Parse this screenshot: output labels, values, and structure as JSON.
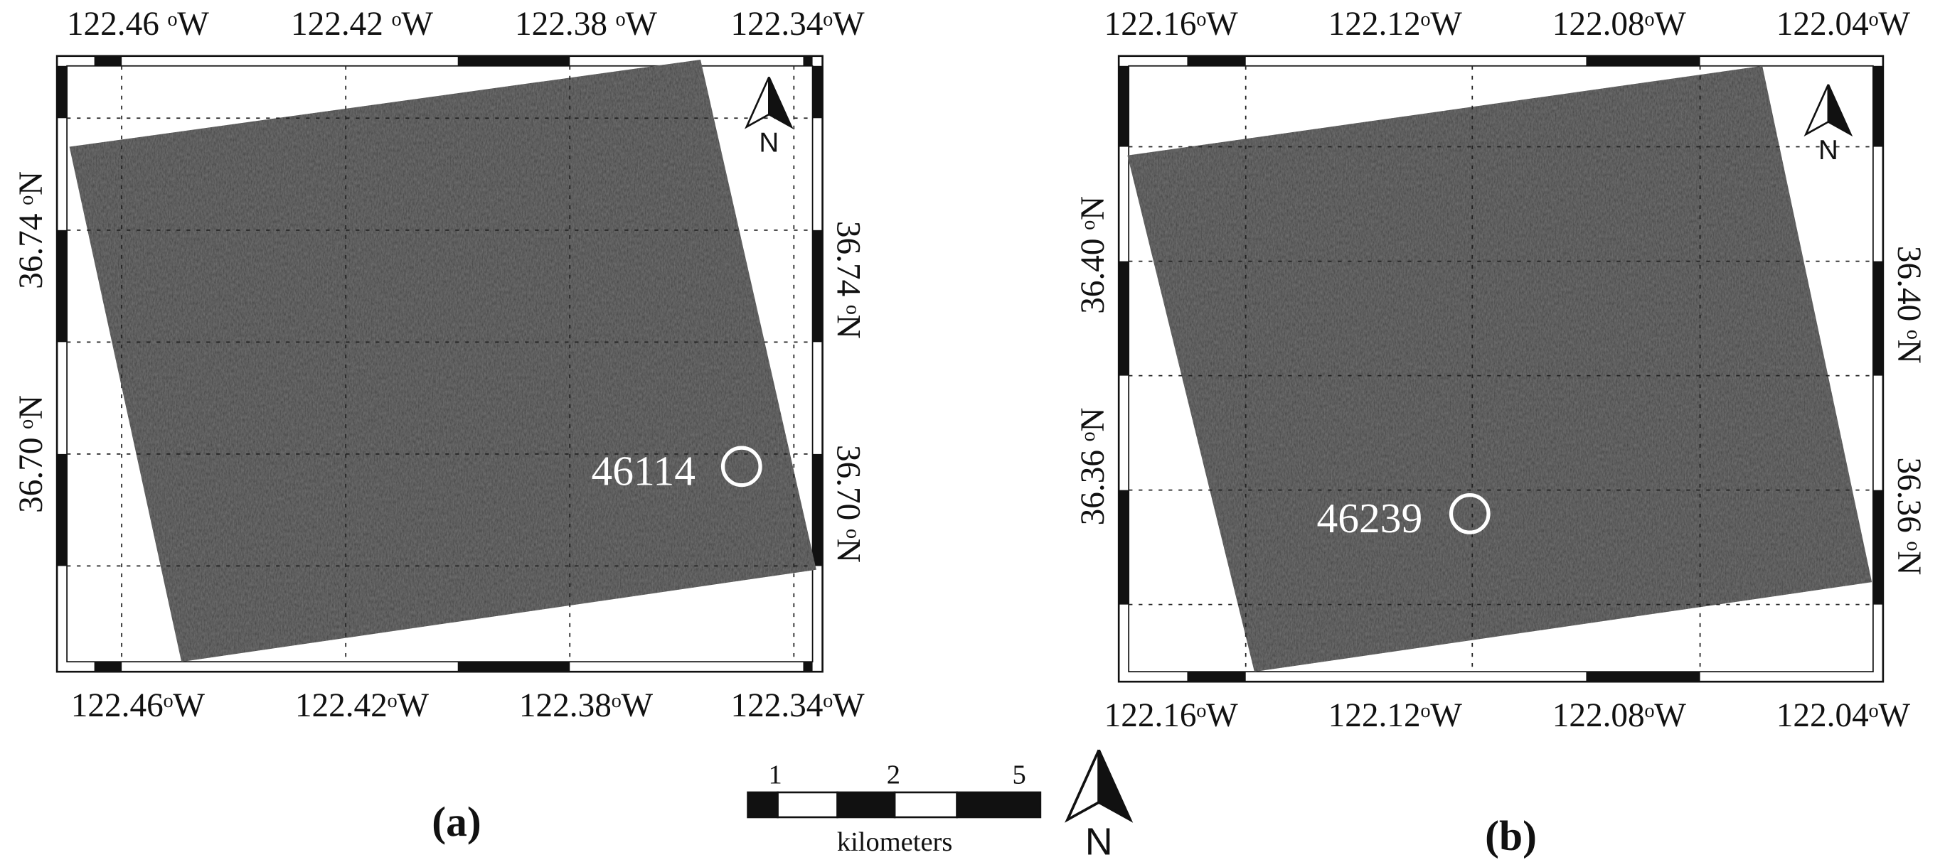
{
  "panels": [
    {
      "label": "(a)",
      "buoy": "46114",
      "north": "N",
      "top_ticks": [
        "122.46 ᵒW",
        "122.42 ᵒW",
        "122.38 ᵒW",
        "122.34ᵒW"
      ],
      "bottom_ticks": [
        "122.46ᵒW",
        "122.42ᵒW",
        "122.38ᵒW",
        "122.34ᵒW"
      ],
      "left_ticks": [
        "36.74 ᵒN",
        "36.70 ᵒN"
      ],
      "right_ticks": [
        "36.74 ᵒN",
        "36.70 ᵒN"
      ]
    },
    {
      "label": "(b)",
      "buoy": "46239",
      "north": "N",
      "top_ticks": [
        "122.16ᵒW",
        "122.12ᵒW",
        "122.08ᵒW",
        "122.04ᵒW"
      ],
      "bottom_ticks": [
        "122.16ᵒW",
        "122.12ᵒW",
        "122.08ᵒW",
        "122.04ᵒW"
      ],
      "left_ticks": [
        "36.40 ᵒN",
        "36.36 ᵒN"
      ],
      "right_ticks": [
        "36.40 ᵒN",
        "36.36 ᵒN"
      ]
    }
  ],
  "scale_bar": {
    "ticks": [
      "1",
      "2",
      "5"
    ],
    "unit": "kilometers",
    "north": "N"
  }
}
